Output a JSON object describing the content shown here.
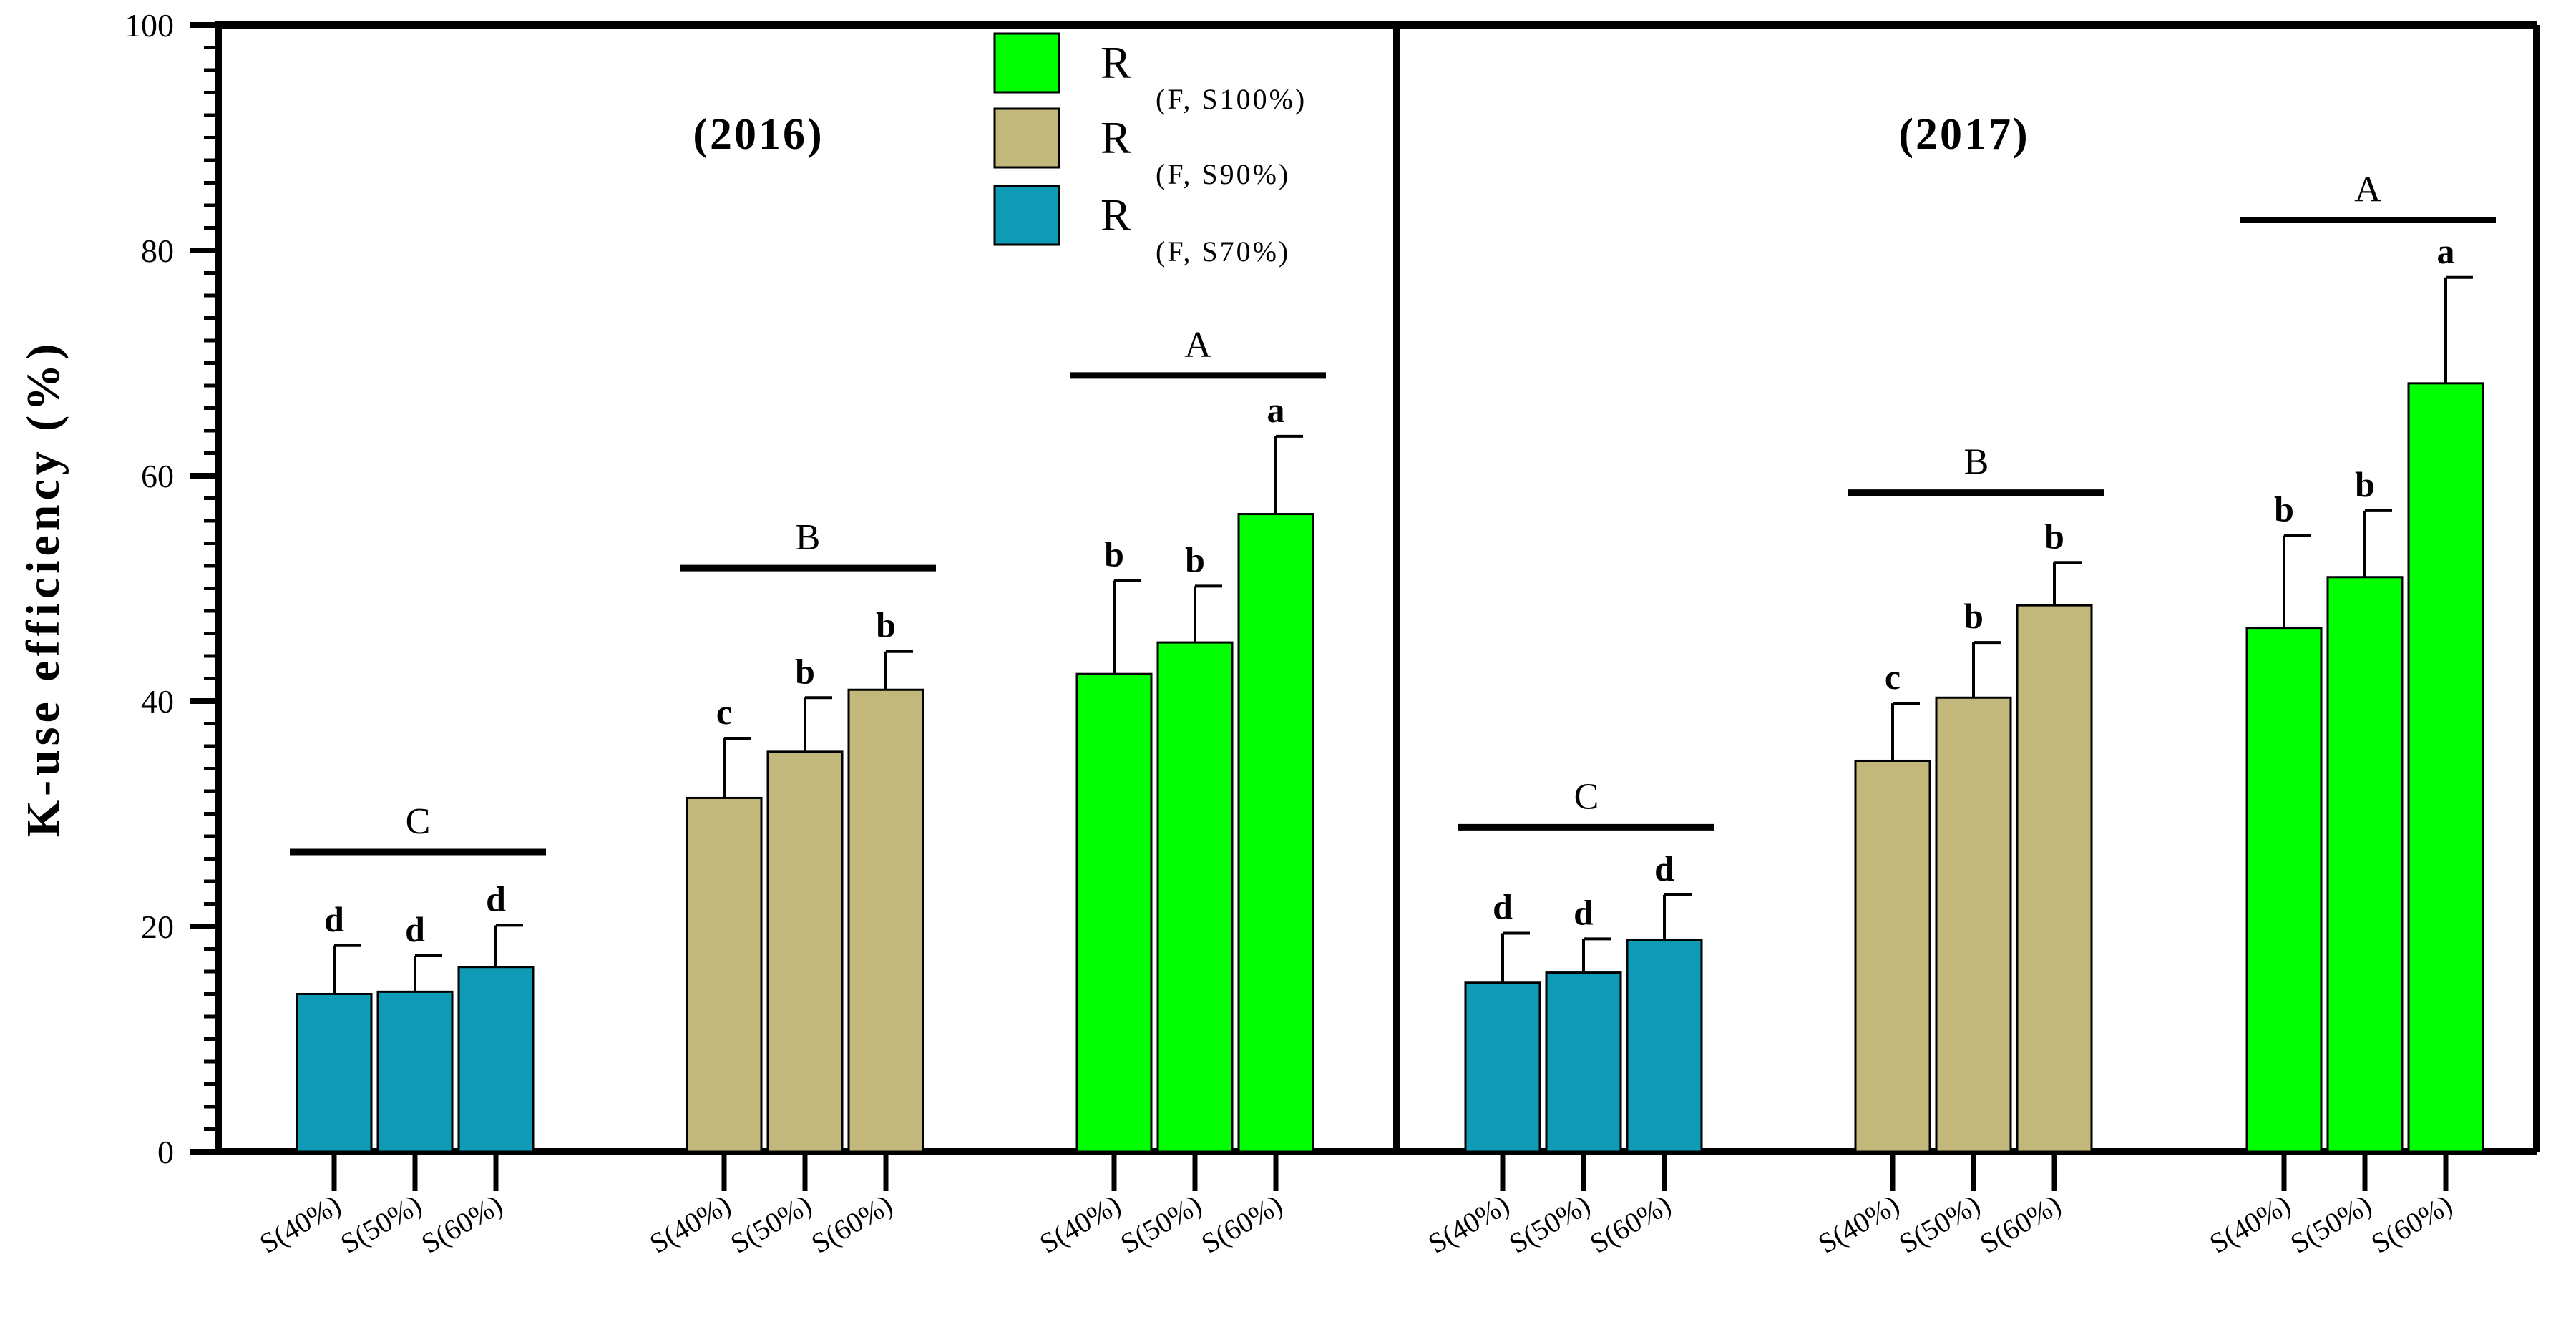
{
  "chart_data": {
    "type": "bar",
    "ylabel": "K-use efficiency (%)",
    "ylim": [
      0,
      100
    ],
    "yticks": [
      0,
      20,
      40,
      60,
      80,
      100
    ],
    "ytick_labels": [
      "0",
      "20",
      "40",
      "60",
      "80",
      "100"
    ],
    "series": [
      {
        "key": "s100",
        "main": "R",
        "sub": "(F, S100%)",
        "color": "#00ff00"
      },
      {
        "key": "s90",
        "main": "R",
        "sub": "(F, S90%)",
        "color": "#c2b87c"
      },
      {
        "key": "s70",
        "main": "R",
        "sub": "(F, S70%)",
        "color": "#0f9ab5"
      }
    ],
    "panels": [
      {
        "year": "(2016)",
        "groups": [
          {
            "series": "s70",
            "label": "C",
            "bars": [
              {
                "category": "S(40%)",
                "value": 14.0,
                "error": 4.3,
                "sig": "d"
              },
              {
                "category": "S(50%)",
                "value": 14.2,
                "error": 3.2,
                "sig": "d"
              },
              {
                "category": "S(60%)",
                "value": 16.4,
                "error": 3.7,
                "sig": "d"
              }
            ]
          },
          {
            "series": "s90",
            "label": "B",
            "bars": [
              {
                "category": "S(40%)",
                "value": 31.4,
                "error": 5.3,
                "sig": "c"
              },
              {
                "category": "S(50%)",
                "value": 35.5,
                "error": 4.8,
                "sig": "b"
              },
              {
                "category": "S(60%)",
                "value": 41.0,
                "error": 3.4,
                "sig": "b"
              }
            ]
          },
          {
            "series": "s100",
            "label": "A",
            "bars": [
              {
                "category": "S(40%)",
                "value": 42.4,
                "error": 8.3,
                "sig": "b"
              },
              {
                "category": "S(50%)",
                "value": 45.2,
                "error": 5.0,
                "sig": "b"
              },
              {
                "category": "S(60%)",
                "value": 56.6,
                "error": 6.9,
                "sig": "a"
              }
            ]
          }
        ]
      },
      {
        "year": "(2017)",
        "groups": [
          {
            "series": "s70",
            "label": "C",
            "bars": [
              {
                "category": "S(40%)",
                "value": 15.0,
                "error": 4.4,
                "sig": "d"
              },
              {
                "category": "S(50%)",
                "value": 15.9,
                "error": 3.0,
                "sig": "d"
              },
              {
                "category": "S(60%)",
                "value": 18.8,
                "error": 4.0,
                "sig": "d"
              }
            ]
          },
          {
            "series": "s90",
            "label": "B",
            "bars": [
              {
                "category": "S(40%)",
                "value": 34.7,
                "error": 5.1,
                "sig": "c"
              },
              {
                "category": "S(50%)",
                "value": 40.3,
                "error": 4.9,
                "sig": "b"
              },
              {
                "category": "S(60%)",
                "value": 48.5,
                "error": 3.8,
                "sig": "b"
              }
            ]
          },
          {
            "series": "s100",
            "label": "A",
            "bars": [
              {
                "category": "S(40%)",
                "value": 46.5,
                "error": 8.2,
                "sig": "b"
              },
              {
                "category": "S(50%)",
                "value": 51.0,
                "error": 5.9,
                "sig": "b"
              },
              {
                "category": "S(60%)",
                "value": 68.2,
                "error": 9.4,
                "sig": "a"
              }
            ]
          }
        ]
      }
    ],
    "group_line_levels": [
      {
        "panel": 0,
        "group": 0,
        "level": 26.6
      },
      {
        "panel": 0,
        "group": 1,
        "level": 51.8
      },
      {
        "panel": 0,
        "group": 2,
        "level": 68.9
      },
      {
        "panel": 1,
        "group": 0,
        "level": 28.8
      },
      {
        "panel": 1,
        "group": 1,
        "level": 58.5
      },
      {
        "panel": 1,
        "group": 2,
        "level": 82.7
      }
    ]
  }
}
